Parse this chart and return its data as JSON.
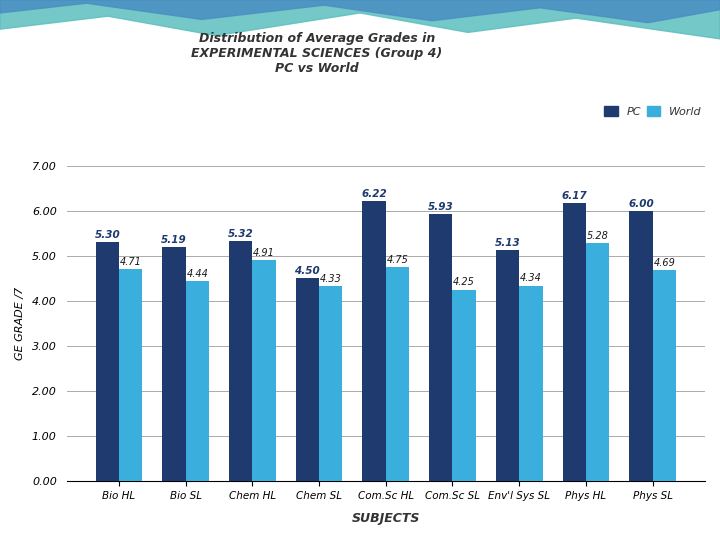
{
  "title_line1": "Distribution of Average Grades in",
  "title_line2": "EXPERIMENTAL SCIENCES (Group 4)",
  "title_line3": "PC vs World",
  "categories": [
    "Bio HL",
    "Bio SL",
    "Chem HL",
    "Chem SL",
    "Com.Sc HL",
    "Com.Sc SL",
    "Env'l Sys SL",
    "Phys HL",
    "Phys SL"
  ],
  "pc_values": [
    5.3,
    5.19,
    5.32,
    4.5,
    6.22,
    5.93,
    5.13,
    6.17,
    6.0
  ],
  "world_values": [
    4.71,
    4.44,
    4.91,
    4.33,
    4.75,
    4.25,
    4.34,
    5.28,
    4.69
  ],
  "pc_color": "#1F3A6E",
  "world_color": "#3AAEDC",
  "ylim": [
    0,
    7.0
  ],
  "yticks": [
    0.0,
    1.0,
    2.0,
    3.0,
    4.0,
    5.0,
    6.0,
    7.0
  ],
  "ylabel": "GE GRADE /7",
  "xlabel": "SUBJECTS",
  "legend_pc": "PC",
  "legend_world": "World",
  "background_color": "#FFFFFF",
  "grid_color": "#AAAAAA",
  "wave_color_teal": "#5BC8C8",
  "wave_color_blue": "#4A90C4"
}
